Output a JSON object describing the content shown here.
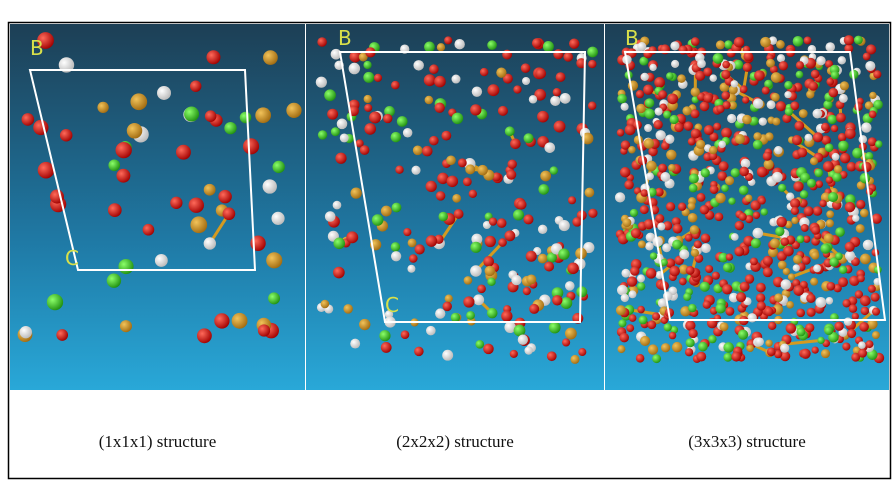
{
  "figure": {
    "panels": [
      {
        "caption": "(1x1x1) structure",
        "axis_labels": [
          "B",
          "C"
        ]
      },
      {
        "caption": "(2x2x2) structure",
        "axis_labels": [
          "B",
          "C"
        ]
      },
      {
        "caption": "(3x3x3) structure",
        "axis_labels": [
          "B"
        ]
      }
    ]
  }
}
